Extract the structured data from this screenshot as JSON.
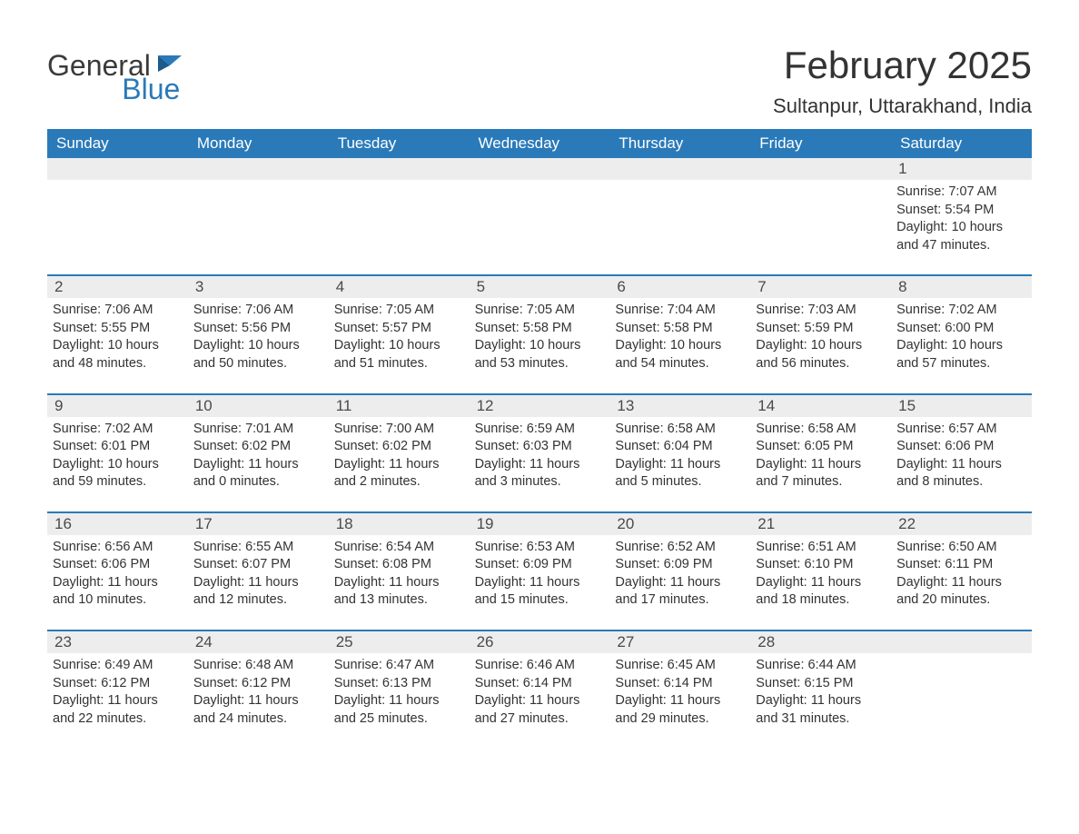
{
  "logo": {
    "word1": "General",
    "word2": "Blue"
  },
  "title": "February 2025",
  "location": "Sultanpur, Uttarakhand, India",
  "colors": {
    "header_bg": "#2a7ab9",
    "header_text": "#ffffff",
    "daynum_bg": "#ededed",
    "body_text": "#333333",
    "row_border": "#2a7ab9",
    "logo_blue": "#2a7ab9",
    "logo_gray": "#3a3a3a",
    "page_bg": "#ffffff"
  },
  "typography": {
    "title_fontsize": 42,
    "location_fontsize": 22,
    "header_fontsize": 17,
    "daynum_fontsize": 17,
    "content_fontsize": 14.5,
    "font_family": "Arial"
  },
  "day_headers": [
    "Sunday",
    "Monday",
    "Tuesday",
    "Wednesday",
    "Thursday",
    "Friday",
    "Saturday"
  ],
  "weeks": [
    [
      {
        "n": "",
        "sr": "",
        "ss": "",
        "dl": ""
      },
      {
        "n": "",
        "sr": "",
        "ss": "",
        "dl": ""
      },
      {
        "n": "",
        "sr": "",
        "ss": "",
        "dl": ""
      },
      {
        "n": "",
        "sr": "",
        "ss": "",
        "dl": ""
      },
      {
        "n": "",
        "sr": "",
        "ss": "",
        "dl": ""
      },
      {
        "n": "",
        "sr": "",
        "ss": "",
        "dl": ""
      },
      {
        "n": "1",
        "sr": "Sunrise: 7:07 AM",
        "ss": "Sunset: 5:54 PM",
        "dl": "Daylight: 10 hours and 47 minutes."
      }
    ],
    [
      {
        "n": "2",
        "sr": "Sunrise: 7:06 AM",
        "ss": "Sunset: 5:55 PM",
        "dl": "Daylight: 10 hours and 48 minutes."
      },
      {
        "n": "3",
        "sr": "Sunrise: 7:06 AM",
        "ss": "Sunset: 5:56 PM",
        "dl": "Daylight: 10 hours and 50 minutes."
      },
      {
        "n": "4",
        "sr": "Sunrise: 7:05 AM",
        "ss": "Sunset: 5:57 PM",
        "dl": "Daylight: 10 hours and 51 minutes."
      },
      {
        "n": "5",
        "sr": "Sunrise: 7:05 AM",
        "ss": "Sunset: 5:58 PM",
        "dl": "Daylight: 10 hours and 53 minutes."
      },
      {
        "n": "6",
        "sr": "Sunrise: 7:04 AM",
        "ss": "Sunset: 5:58 PM",
        "dl": "Daylight: 10 hours and 54 minutes."
      },
      {
        "n": "7",
        "sr": "Sunrise: 7:03 AM",
        "ss": "Sunset: 5:59 PM",
        "dl": "Daylight: 10 hours and 56 minutes."
      },
      {
        "n": "8",
        "sr": "Sunrise: 7:02 AM",
        "ss": "Sunset: 6:00 PM",
        "dl": "Daylight: 10 hours and 57 minutes."
      }
    ],
    [
      {
        "n": "9",
        "sr": "Sunrise: 7:02 AM",
        "ss": "Sunset: 6:01 PM",
        "dl": "Daylight: 10 hours and 59 minutes."
      },
      {
        "n": "10",
        "sr": "Sunrise: 7:01 AM",
        "ss": "Sunset: 6:02 PM",
        "dl": "Daylight: 11 hours and 0 minutes."
      },
      {
        "n": "11",
        "sr": "Sunrise: 7:00 AM",
        "ss": "Sunset: 6:02 PM",
        "dl": "Daylight: 11 hours and 2 minutes."
      },
      {
        "n": "12",
        "sr": "Sunrise: 6:59 AM",
        "ss": "Sunset: 6:03 PM",
        "dl": "Daylight: 11 hours and 3 minutes."
      },
      {
        "n": "13",
        "sr": "Sunrise: 6:58 AM",
        "ss": "Sunset: 6:04 PM",
        "dl": "Daylight: 11 hours and 5 minutes."
      },
      {
        "n": "14",
        "sr": "Sunrise: 6:58 AM",
        "ss": "Sunset: 6:05 PM",
        "dl": "Daylight: 11 hours and 7 minutes."
      },
      {
        "n": "15",
        "sr": "Sunrise: 6:57 AM",
        "ss": "Sunset: 6:06 PM",
        "dl": "Daylight: 11 hours and 8 minutes."
      }
    ],
    [
      {
        "n": "16",
        "sr": "Sunrise: 6:56 AM",
        "ss": "Sunset: 6:06 PM",
        "dl": "Daylight: 11 hours and 10 minutes."
      },
      {
        "n": "17",
        "sr": "Sunrise: 6:55 AM",
        "ss": "Sunset: 6:07 PM",
        "dl": "Daylight: 11 hours and 12 minutes."
      },
      {
        "n": "18",
        "sr": "Sunrise: 6:54 AM",
        "ss": "Sunset: 6:08 PM",
        "dl": "Daylight: 11 hours and 13 minutes."
      },
      {
        "n": "19",
        "sr": "Sunrise: 6:53 AM",
        "ss": "Sunset: 6:09 PM",
        "dl": "Daylight: 11 hours and 15 minutes."
      },
      {
        "n": "20",
        "sr": "Sunrise: 6:52 AM",
        "ss": "Sunset: 6:09 PM",
        "dl": "Daylight: 11 hours and 17 minutes."
      },
      {
        "n": "21",
        "sr": "Sunrise: 6:51 AM",
        "ss": "Sunset: 6:10 PM",
        "dl": "Daylight: 11 hours and 18 minutes."
      },
      {
        "n": "22",
        "sr": "Sunrise: 6:50 AM",
        "ss": "Sunset: 6:11 PM",
        "dl": "Daylight: 11 hours and 20 minutes."
      }
    ],
    [
      {
        "n": "23",
        "sr": "Sunrise: 6:49 AM",
        "ss": "Sunset: 6:12 PM",
        "dl": "Daylight: 11 hours and 22 minutes."
      },
      {
        "n": "24",
        "sr": "Sunrise: 6:48 AM",
        "ss": "Sunset: 6:12 PM",
        "dl": "Daylight: 11 hours and 24 minutes."
      },
      {
        "n": "25",
        "sr": "Sunrise: 6:47 AM",
        "ss": "Sunset: 6:13 PM",
        "dl": "Daylight: 11 hours and 25 minutes."
      },
      {
        "n": "26",
        "sr": "Sunrise: 6:46 AM",
        "ss": "Sunset: 6:14 PM",
        "dl": "Daylight: 11 hours and 27 minutes."
      },
      {
        "n": "27",
        "sr": "Sunrise: 6:45 AM",
        "ss": "Sunset: 6:14 PM",
        "dl": "Daylight: 11 hours and 29 minutes."
      },
      {
        "n": "28",
        "sr": "Sunrise: 6:44 AM",
        "ss": "Sunset: 6:15 PM",
        "dl": "Daylight: 11 hours and 31 minutes."
      },
      {
        "n": "",
        "sr": "",
        "ss": "",
        "dl": ""
      }
    ]
  ]
}
